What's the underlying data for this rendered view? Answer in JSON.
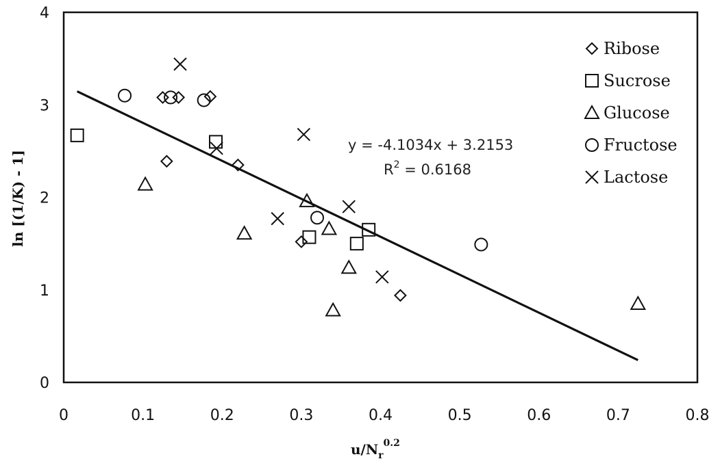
{
  "chart_data": {
    "type": "scatter",
    "xlabel": "u/N",
    "xlabel_sub": "r",
    "xlabel_sup": "0.2",
    "ylabel": "ln [(1/K) - 1]",
    "xlim": [
      0,
      0.8
    ],
    "ylim": [
      0,
      4
    ],
    "x_ticks": [
      "0",
      "0.1",
      "0.2",
      "0.3",
      "0.4",
      "0.5",
      "0.6",
      "0.7",
      "0.8"
    ],
    "y_ticks": [
      "0",
      "1",
      "2",
      "3",
      "4"
    ],
    "grid": false,
    "legend_position": "top-right",
    "series": [
      {
        "name": "Ribose",
        "marker": "diamond",
        "points": [
          [
            0.125,
            3.08
          ],
          [
            0.145,
            3.08
          ],
          [
            0.185,
            3.09
          ],
          [
            0.13,
            2.39
          ],
          [
            0.22,
            2.35
          ],
          [
            0.3,
            1.52
          ],
          [
            0.425,
            0.94
          ]
        ]
      },
      {
        "name": "Sucrose",
        "marker": "square",
        "points": [
          [
            0.017,
            2.67
          ],
          [
            0.192,
            2.6
          ],
          [
            0.31,
            1.57
          ],
          [
            0.37,
            1.5
          ],
          [
            0.385,
            1.65
          ]
        ]
      },
      {
        "name": "Glucose",
        "marker": "triangle",
        "points": [
          [
            0.103,
            2.14
          ],
          [
            0.228,
            1.61
          ],
          [
            0.307,
            1.96
          ],
          [
            0.335,
            1.66
          ],
          [
            0.36,
            1.24
          ],
          [
            0.34,
            0.78
          ],
          [
            0.725,
            0.85
          ]
        ]
      },
      {
        "name": "Fructose",
        "marker": "circle",
        "points": [
          [
            0.077,
            3.1
          ],
          [
            0.135,
            3.08
          ],
          [
            0.177,
            3.05
          ],
          [
            0.32,
            1.78
          ],
          [
            0.527,
            1.49
          ]
        ]
      },
      {
        "name": "Lactose",
        "marker": "cross",
        "points": [
          [
            0.147,
            3.44
          ],
          [
            0.193,
            2.53
          ],
          [
            0.27,
            1.77
          ],
          [
            0.303,
            2.68
          ],
          [
            0.36,
            1.9
          ],
          [
            0.402,
            1.14
          ]
        ]
      }
    ],
    "trendline": {
      "slope": -4.1034,
      "intercept": 3.2153,
      "x_range": [
        0.017,
        0.725
      ]
    },
    "annotations": {
      "equation": "y = -4.1034x + 3.2153",
      "r2_prefix": "R",
      "r2_sup": "2",
      "r2_value": " = 0.6168"
    }
  }
}
